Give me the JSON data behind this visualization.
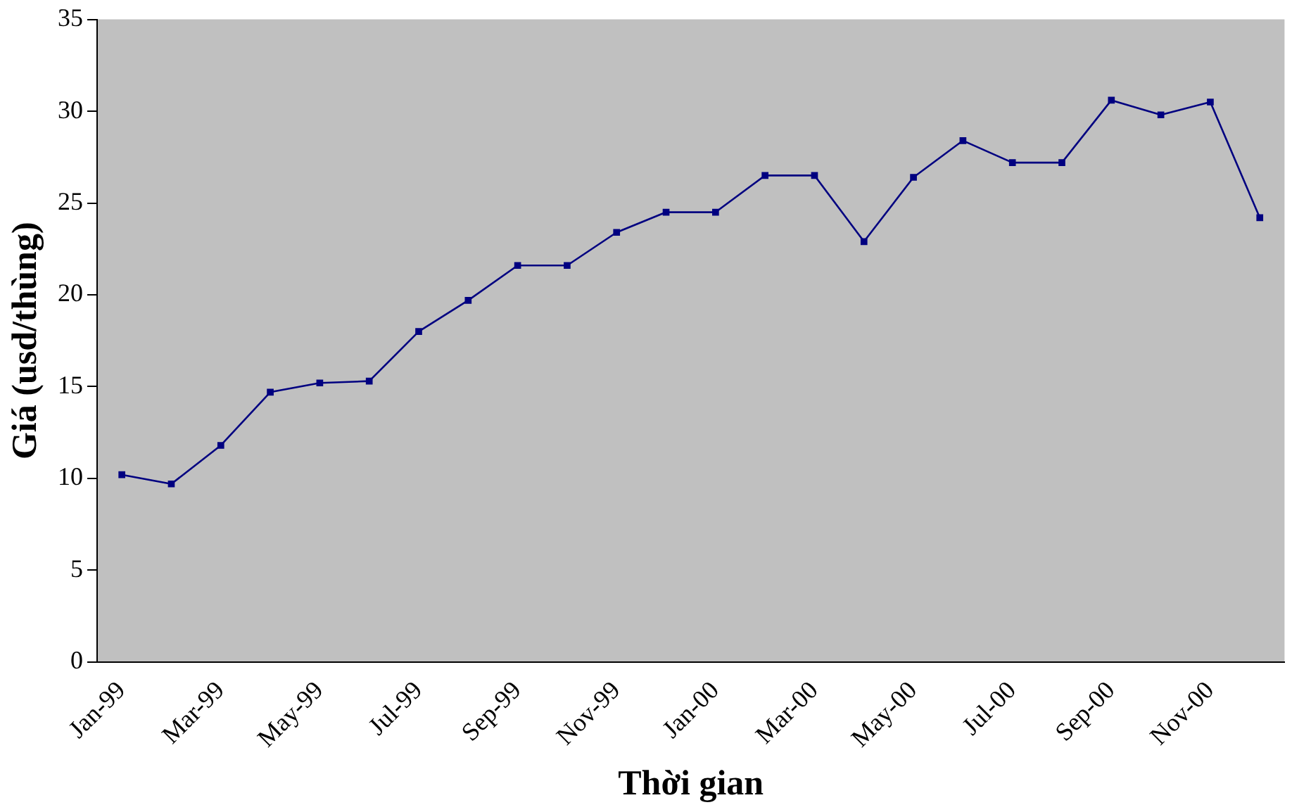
{
  "chart_data": {
    "type": "line",
    "xlabel": "Thời gian",
    "ylabel": "Giá (usd/thùng)",
    "categories": [
      "Jan-99",
      null,
      "Mar-99",
      null,
      "May-99",
      null,
      "Jul-99",
      null,
      "Sep-99",
      null,
      "Nov-99",
      null,
      "Jan-00",
      null,
      "Mar-00",
      null,
      "May-00",
      null,
      "Jul-00",
      null,
      "Sep-00",
      null,
      "Nov-00",
      null
    ],
    "series": [
      {
        "color": "#000080",
        "values": [
          10.2,
          9.7,
          11.8,
          14.7,
          15.2,
          15.3,
          18.0,
          19.7,
          21.6,
          21.6,
          23.4,
          24.5,
          24.5,
          26.5,
          26.5,
          22.9,
          26.4,
          28.4,
          27.2,
          27.2,
          30.6,
          29.8,
          30.5,
          24.2
        ]
      }
    ],
    "ylim": [
      0,
      35
    ],
    "yticks": [
      0,
      5,
      10,
      15,
      20,
      25,
      30,
      35
    ],
    "grid": false,
    "legend": false,
    "marker": "square",
    "line_style": "solid"
  }
}
